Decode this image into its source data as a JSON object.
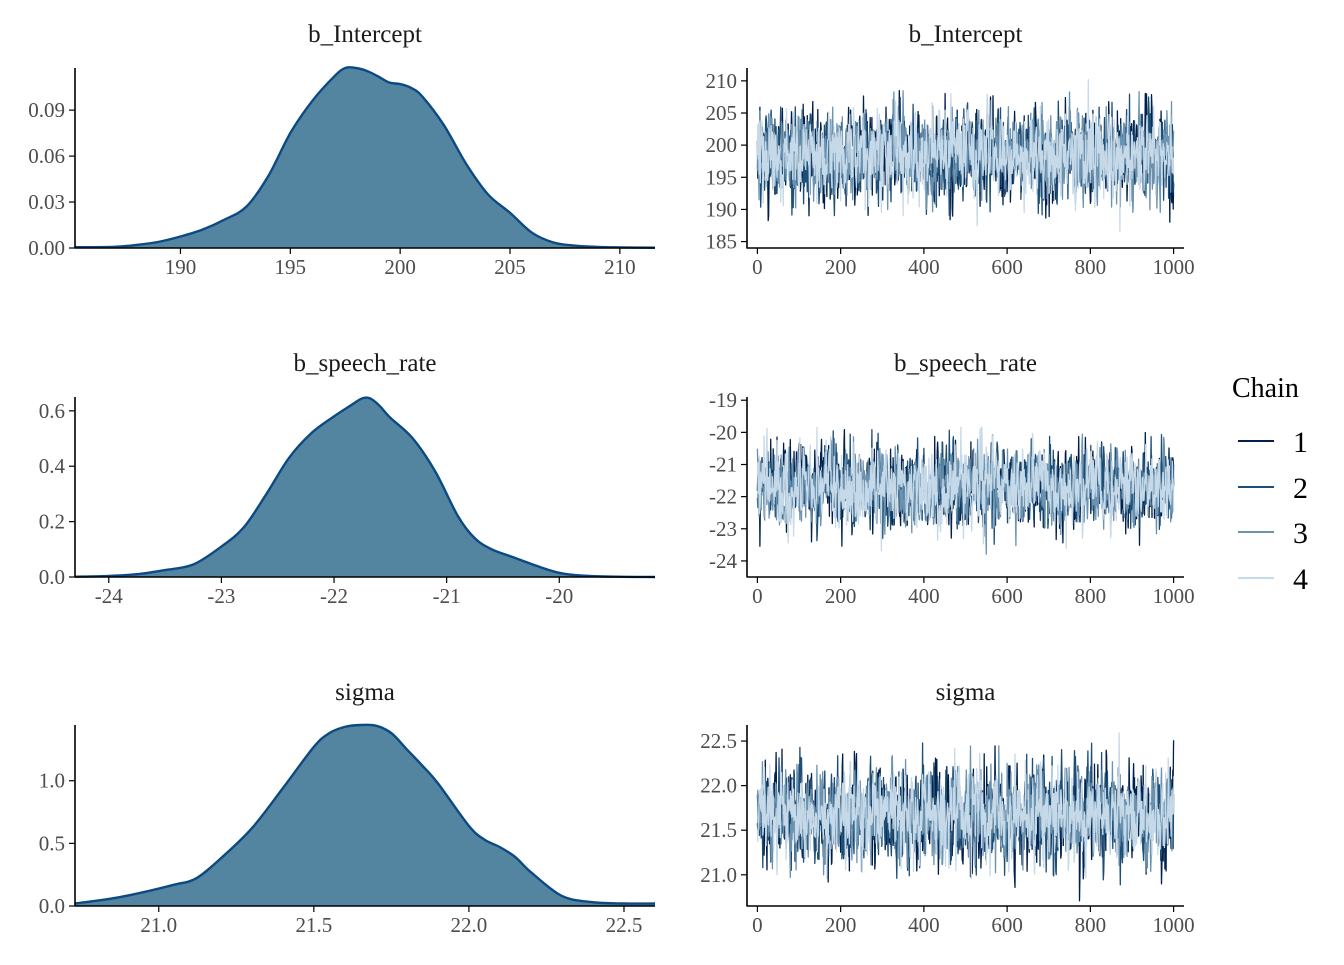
{
  "colors": {
    "density_fill": "#5384a0",
    "density_line": "#0b4a82",
    "axis": "#000000",
    "tick_label": "#4d4d4d",
    "chains": [
      "#011f4b",
      "#1d4e76",
      "#6b93b0",
      "#c6d9e8"
    ]
  },
  "legend": {
    "title": "Chain",
    "position": "right",
    "items": [
      "1",
      "2",
      "3",
      "4"
    ]
  },
  "chart_data": [
    {
      "type": "area",
      "title": "b_Intercept",
      "xlim": [
        185.2,
        211.6
      ],
      "ylim": [
        0,
        0.1175
      ],
      "x_ticks": [
        190,
        195,
        200,
        205,
        210
      ],
      "x_tick_labels": [
        "190",
        "195",
        "200",
        "205",
        "210"
      ],
      "y_ticks": [
        0,
        0.03,
        0.06,
        0.09
      ],
      "y_tick_labels": [
        "0.00",
        "0.03",
        "0.06",
        "0.09"
      ],
      "x": [
        185.2,
        187,
        188,
        189,
        190,
        191,
        192,
        193,
        194,
        195,
        196,
        197,
        197.5,
        198,
        198.5,
        199,
        199.5,
        200,
        200.5,
        201,
        202,
        203,
        204,
        205,
        206,
        207,
        208,
        209,
        210,
        211.6
      ],
      "y": [
        0.0005,
        0.0008,
        0.002,
        0.004,
        0.0075,
        0.012,
        0.0185,
        0.027,
        0.047,
        0.075,
        0.096,
        0.112,
        0.1175,
        0.1175,
        0.1155,
        0.112,
        0.108,
        0.107,
        0.1045,
        0.099,
        0.08,
        0.055,
        0.035,
        0.023,
        0.01,
        0.0035,
        0.0015,
        0.0007,
        0.0004,
        0.0002
      ]
    },
    {
      "type": "area",
      "title": "b_speech_rate",
      "xlim": [
        -24.3,
        -19.15
      ],
      "ylim": [
        0,
        0.65
      ],
      "x_ticks": [
        -24,
        -23,
        -22,
        -21,
        -20
      ],
      "x_tick_labels": [
        "-24",
        "-23",
        "-22",
        "-21",
        "-20"
      ],
      "y_ticks": [
        0,
        0.2,
        0.4,
        0.6
      ],
      "y_tick_labels": [
        "0.0",
        "0.2",
        "0.4",
        "0.6"
      ],
      "x": [
        -24.3,
        -24,
        -23.75,
        -23.5,
        -23.25,
        -23.0,
        -22.8,
        -22.6,
        -22.4,
        -22.2,
        -22.0,
        -21.85,
        -21.75,
        -21.68,
        -21.6,
        -21.5,
        -21.3,
        -21.1,
        -20.9,
        -20.75,
        -20.6,
        -20.4,
        -20.2,
        -20.0,
        -19.8,
        -19.5,
        -19.15
      ],
      "y": [
        0.001,
        0.004,
        0.01,
        0.025,
        0.045,
        0.11,
        0.18,
        0.3,
        0.43,
        0.52,
        0.58,
        0.62,
        0.645,
        0.645,
        0.62,
        0.575,
        0.5,
        0.38,
        0.22,
        0.14,
        0.1,
        0.07,
        0.04,
        0.015,
        0.005,
        0.001,
        0.0
      ]
    },
    {
      "type": "area",
      "title": "sigma",
      "xlim": [
        20.73,
        22.6
      ],
      "ylim": [
        0,
        1.445
      ],
      "x_ticks": [
        21.0,
        21.5,
        22.0,
        22.5
      ],
      "x_tick_labels": [
        "21.0",
        "21.5",
        "22.0",
        "22.5"
      ],
      "y_ticks": [
        0,
        0.5,
        1.0
      ],
      "y_tick_labels": [
        "0.0",
        "0.5",
        "1.0"
      ],
      "x": [
        20.73,
        20.85,
        20.95,
        21.05,
        21.12,
        21.2,
        21.3,
        21.4,
        21.5,
        21.55,
        21.6,
        21.65,
        21.7,
        21.75,
        21.8,
        21.85,
        21.9,
        22.0,
        22.05,
        22.1,
        22.15,
        22.2,
        22.3,
        22.4,
        22.5,
        22.6
      ],
      "y": [
        0.02,
        0.06,
        0.11,
        0.17,
        0.22,
        0.38,
        0.62,
        0.94,
        1.27,
        1.38,
        1.43,
        1.445,
        1.44,
        1.38,
        1.25,
        1.12,
        0.98,
        0.64,
        0.53,
        0.47,
        0.39,
        0.27,
        0.08,
        0.03,
        0.02,
        0.02
      ]
    },
    {
      "type": "line",
      "title": "b_Intercept",
      "xlim": [
        -25,
        1025
      ],
      "ylim": [
        184,
        212
      ],
      "x_ticks": [
        0,
        200,
        400,
        600,
        800,
        1000
      ],
      "x_tick_labels": [
        "0",
        "200",
        "400",
        "600",
        "800",
        "1000"
      ],
      "y_ticks": [
        185,
        190,
        195,
        200,
        205,
        210
      ],
      "y_tick_labels": [
        "185",
        "190",
        "195",
        "200",
        "205",
        "210"
      ],
      "iterations": 1000,
      "series": [
        {
          "name": "1",
          "mean": 198.5,
          "sd": 3.6,
          "min": 188.0,
          "max": 209.0
        },
        {
          "name": "2",
          "mean": 198.5,
          "sd": 3.4,
          "min": 189.0,
          "max": 208.0
        },
        {
          "name": "3",
          "mean": 198.5,
          "sd": 3.3,
          "min": 189.5,
          "max": 208.5
        },
        {
          "name": "4",
          "mean": 198.5,
          "sd": 3.3,
          "min": 185.0,
          "max": 211.5
        }
      ]
    },
    {
      "type": "line",
      "title": "b_speech_rate",
      "xlim": [
        -25,
        1025
      ],
      "ylim": [
        -24.5,
        -18.9
      ],
      "x_ticks": [
        0,
        200,
        400,
        600,
        800,
        1000
      ],
      "x_tick_labels": [
        "0",
        "200",
        "400",
        "600",
        "800",
        "1000"
      ],
      "y_ticks": [
        -24,
        -23,
        -22,
        -21,
        -20,
        -19
      ],
      "y_tick_labels": [
        "-24",
        "-23",
        "-22",
        "-21",
        "-20",
        "-19"
      ],
      "iterations": 1000,
      "series": [
        {
          "name": "1",
          "mean": -21.7,
          "sd": 0.62,
          "min": -23.6,
          "max": -19.8
        },
        {
          "name": "2",
          "mean": -21.7,
          "sd": 0.6,
          "min": -23.5,
          "max": -19.9
        },
        {
          "name": "3",
          "mean": -21.7,
          "sd": 0.6,
          "min": -23.8,
          "max": -19.9
        },
        {
          "name": "4",
          "mean": -21.7,
          "sd": 0.6,
          "min": -24.3,
          "max": -19.2
        }
      ]
    },
    {
      "type": "line",
      "title": "sigma",
      "xlim": [
        -25,
        1025
      ],
      "ylim": [
        20.65,
        22.68
      ],
      "x_ticks": [
        0,
        200,
        400,
        600,
        800,
        1000
      ],
      "x_tick_labels": [
        "0",
        "200",
        "400",
        "600",
        "800",
        "1000"
      ],
      "y_ticks": [
        21.0,
        21.5,
        22.0,
        22.5
      ],
      "y_tick_labels": [
        "21.0",
        "21.5",
        "22.0",
        "22.5"
      ],
      "iterations": 1000,
      "series": [
        {
          "name": "1",
          "mean": 21.68,
          "sd": 0.28,
          "min": 20.7,
          "max": 22.58
        },
        {
          "name": "2",
          "mean": 21.68,
          "sd": 0.27,
          "min": 20.85,
          "max": 22.55
        },
        {
          "name": "3",
          "mean": 21.68,
          "sd": 0.26,
          "min": 20.8,
          "max": 22.45
        },
        {
          "name": "4",
          "mean": 21.68,
          "sd": 0.25,
          "min": 20.95,
          "max": 22.6
        }
      ]
    }
  ]
}
